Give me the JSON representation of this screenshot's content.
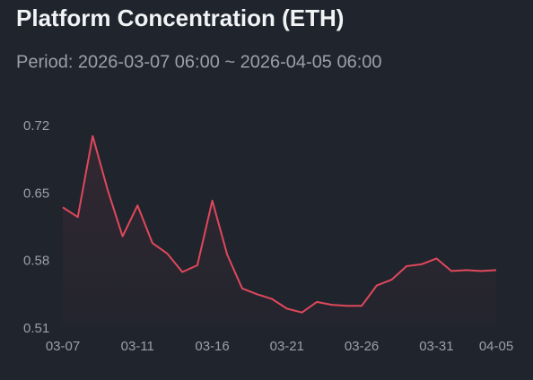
{
  "chart_data": {
    "type": "line",
    "title": "Platform Concentration (ETH)",
    "subtitle": "Period: 2026-03-07 06:00 ~ 2026-04-05 06:00",
    "categories": [
      "03-07",
      null,
      null,
      null,
      null,
      "03-11",
      null,
      null,
      null,
      null,
      "03-16",
      null,
      null,
      null,
      null,
      "03-21",
      null,
      null,
      null,
      null,
      "03-26",
      null,
      null,
      null,
      null,
      "03-31",
      null,
      null,
      null,
      "04-05"
    ],
    "series": [
      {
        "color": "#e0485b",
        "values": [
          0.636,
          0.626,
          0.71,
          0.654,
          0.606,
          0.638,
          0.599,
          0.588,
          0.569,
          0.576,
          0.643,
          0.587,
          0.552,
          0.546,
          0.541,
          0.531,
          0.527,
          0.538,
          0.535,
          0.534,
          0.534,
          0.555,
          0.561,
          0.575,
          0.577,
          0.583,
          0.57,
          0.571,
          0.57,
          0.571
        ]
      }
    ],
    "ylim": [
      0.51,
      0.72
    ],
    "yticks": [
      0.51,
      0.58,
      0.65,
      0.72
    ],
    "grid": false
  }
}
